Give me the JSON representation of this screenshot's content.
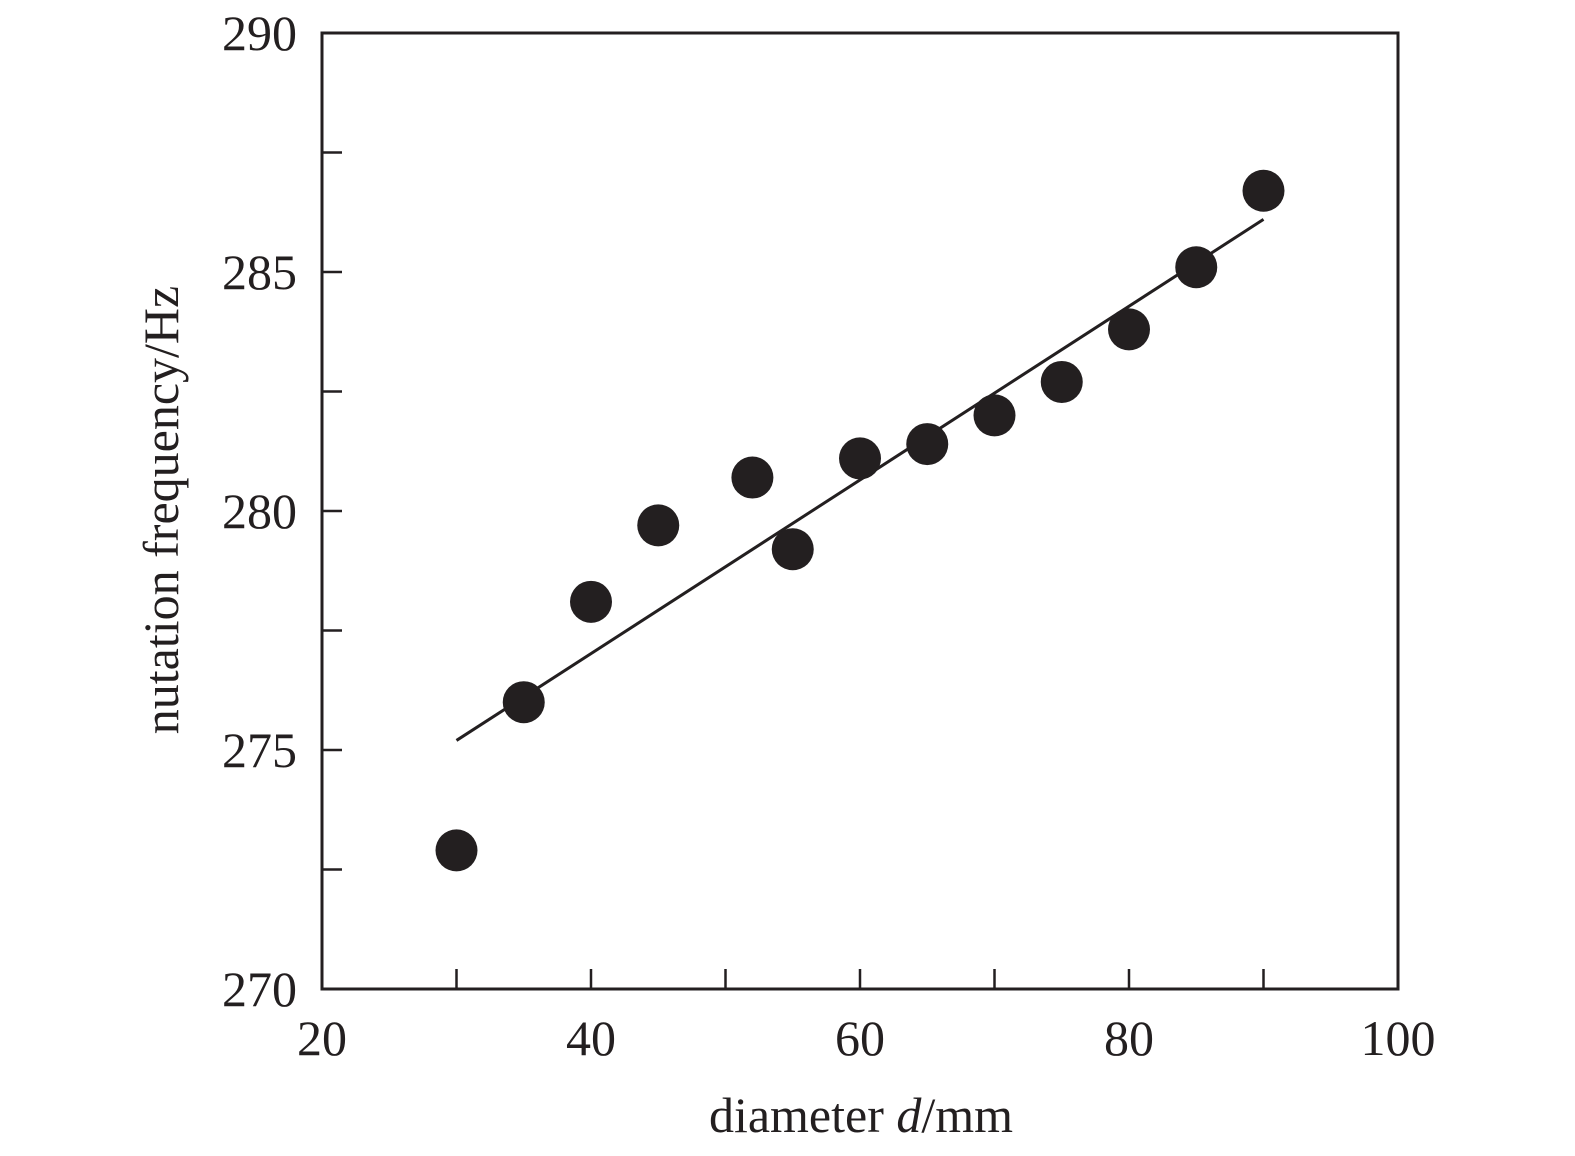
{
  "chart_data": {
    "type": "scatter",
    "xlabel": {
      "prefix": "diameter ",
      "var": "d",
      "suffix": "/mm"
    },
    "ylabel": "nutation frequency/Hz",
    "xlim": [
      20,
      100
    ],
    "ylim": [
      270,
      290
    ],
    "x_ticks": [
      20,
      40,
      60,
      80,
      100
    ],
    "x_minor_ticks": [
      30,
      50,
      70,
      90
    ],
    "y_ticks": [
      270,
      275,
      280,
      285,
      290
    ],
    "y_minor_ticks": [
      272.5,
      277.5,
      282.5,
      287.5
    ],
    "grid": false,
    "series": [
      {
        "x": [
          30,
          35,
          40,
          45,
          52,
          55,
          60,
          65,
          70,
          75,
          80,
          85,
          90
        ],
        "y": [
          272.9,
          276.0,
          278.1,
          279.7,
          280.7,
          279.2,
          281.1,
          281.4,
          282.0,
          282.7,
          283.8,
          285.1,
          286.7
        ]
      }
    ],
    "trendline": {
      "x": [
        30,
        90
      ],
      "y": [
        275.2,
        286.1
      ]
    },
    "colors": {
      "marker": "#231f20",
      "line": "#231f20",
      "axes": "#231f20"
    }
  }
}
